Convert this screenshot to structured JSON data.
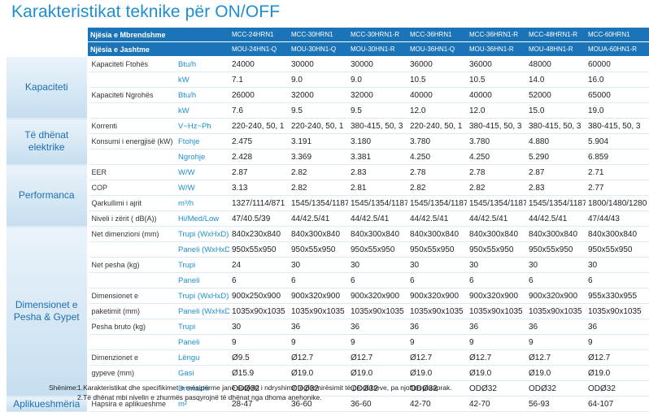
{
  "title": "Karakteristikat teknike për ON/OFF",
  "header": {
    "indoor_label": "Njësia e Mbrendshme",
    "outdoor_label": "Njësia e Jashtme",
    "indoor_models": [
      "MCC-24HRN1",
      "MCC-30HRN1",
      "MCC-30HRN1-R",
      "MCC-36HRN1",
      "MCC-36HRN1-R",
      "MCC-48HRN1-R",
      "MCC-60HRN1"
    ],
    "outdoor_models": [
      "MOU-24HN1-Q",
      "MOU-30HN1-Q",
      "MOU-30HN1-R",
      "MOU-36HN1-Q",
      "MOU-36HN1-R",
      "MOU-48HN1-R",
      "MOUA-60HN1-R"
    ]
  },
  "sections": {
    "kapaciteti": "Kapaciteti",
    "elektrike": "Të dhënat elektrike",
    "performanca": "Performanca",
    "dimensionet": "Dimensionet e Pesha & Gypet",
    "aplikueshmeria": "Aplikueshmëria"
  },
  "rows": [
    {
      "label": "Kapaciteti Ftohës",
      "unit": "Btu/h",
      "values": [
        "24000",
        "30000",
        "30000",
        "36000",
        "36000",
        "48000",
        "60000"
      ]
    },
    {
      "label": "",
      "unit": "kW",
      "values": [
        "7.1",
        "9.0",
        "9.0",
        "10.5",
        "10.5",
        "14.0",
        "16.0"
      ]
    },
    {
      "label": "Kapaciteti Ngrohës",
      "unit": "Btu/h",
      "values": [
        "26000",
        "32000",
        "32000",
        "40000",
        "40000",
        "52000",
        "65000"
      ]
    },
    {
      "label": "",
      "unit": "kW",
      "values": [
        "7.6",
        "9.5",
        "9.5",
        "12.0",
        "12.0",
        "15.0",
        "19.0"
      ]
    },
    {
      "label": "Korrenti",
      "unit": "V~Hz~Ph",
      "values": [
        "220-240, 50, 1",
        "220-240, 50, 1",
        "380-415, 50, 3",
        "220-240, 50, 1",
        "380-415, 50, 3",
        "380-415, 50, 3",
        "380-415, 50, 3"
      ]
    },
    {
      "label": "Konsumi i energjisë (kW)",
      "unit": "Ftohje",
      "values": [
        "2.475",
        "3.191",
        "3.180",
        "3.780",
        "3.780",
        "4.880",
        "5.904"
      ]
    },
    {
      "label": "",
      "unit": "Ngrohje",
      "values": [
        "2.428",
        "3.369",
        "3.381",
        "4.250",
        "4.250",
        "5.290",
        "6.859"
      ]
    },
    {
      "label": "EER",
      "unit": "W/W",
      "values": [
        "2.87",
        "2.82",
        "2.83",
        "2.78",
        "2.78",
        "2.87",
        "2.71"
      ]
    },
    {
      "label": "COP",
      "unit": "W/W",
      "values": [
        "3.13",
        "2.82",
        "2.81",
        "2.82",
        "2.82",
        "2.83",
        "2.77"
      ]
    },
    {
      "label": "Qarkullimi i ajrit",
      "unit": "m³/h",
      "values": [
        "1327/1114/871",
        "1545/1354/1187",
        "1545/1354/1187",
        "1545/1354/1187",
        "1545/1354/1187",
        "1545/1354/1187",
        "1800/1480/1280"
      ]
    },
    {
      "label": "Niveli i zërit ( dB(A))",
      "unit": "Hi/Med/Low",
      "values": [
        "47/40.5/39",
        "44/42.5/41",
        "44/42.5/41",
        "44/42.5/41",
        "44/42.5/41",
        "44/42.5/41",
        "47/44/43"
      ]
    },
    {
      "label": "Net dimenzioni (mm)",
      "unit": "Trupi  (WxHxD)",
      "values": [
        "840x230x840",
        "840x300x840",
        "840x300x840",
        "840x300x840",
        "840x300x840",
        "840x300x840",
        "840x300x840"
      ]
    },
    {
      "label": "",
      "unit": "Paneli (WxHxD)",
      "values": [
        "950x55x950",
        "950x55x950",
        "950x55x950",
        "950x55x950",
        "950x55x950",
        "950x55x950",
        "950x55x950"
      ]
    },
    {
      "label": "Net pesha (kg)",
      "unit": "Trupi",
      "values": [
        "24",
        "30",
        "30",
        "30",
        "30",
        "30",
        "30"
      ]
    },
    {
      "label": "",
      "unit": "Paneli",
      "values": [
        "6",
        "6",
        "6",
        "6",
        "6",
        "6",
        "6"
      ]
    },
    {
      "label": "Dimensionet e",
      "unit": "Trupi  (WxHxD)",
      "values": [
        "900x250x900",
        "900x320x900",
        "900x320x900",
        "900x320x900",
        "900x320x900",
        "900x320x900",
        "955x330x955"
      ]
    },
    {
      "label": "paketimit (mm)",
      "unit": "Paneli (WxHxD)",
      "values": [
        "1035x90x1035",
        "1035x90x1035",
        "1035x90x1035",
        "1035x90x1035",
        "1035x90x1035",
        "1035x90x1035",
        "1035x90x1035"
      ]
    },
    {
      "label": "Pesha bruto (kg)",
      "unit": "Trupi",
      "values": [
        "30",
        "36",
        "36",
        "36",
        "36",
        "36",
        "36"
      ]
    },
    {
      "label": "",
      "unit": "Paneli",
      "values": [
        "9",
        "9",
        "9",
        "9",
        "9",
        "9",
        "9"
      ]
    },
    {
      "label": "Dimenzionet e",
      "unit": "Lëngu",
      "values": [
        "Ø9.5",
        "Ø12.7",
        "Ø12.7",
        "Ø12.7",
        "Ø12.7",
        "Ø12.7",
        "Ø12.7"
      ]
    },
    {
      "label": "gypeve (mm)",
      "unit": "Gasi",
      "values": [
        "Ø15.9",
        "Ø19.0",
        "Ø19.0",
        "Ø19.0",
        "Ø19.0",
        "Ø19.0",
        "Ø19.0"
      ]
    },
    {
      "label": "",
      "unit": "Drenazhi",
      "values": [
        "ODØ32",
        "ODØ32",
        "ODØ32",
        "ODØ32",
        "ODØ32",
        "ODØ32",
        "ODØ32"
      ]
    },
    {
      "label": "Hapsira e aplikueshme",
      "unit": "m²",
      "values": [
        "28-47",
        "36-60",
        "36-60",
        "42-70",
        "42-70",
        "56-93",
        "64-107"
      ]
    }
  ],
  "notes": {
    "label": "Shënime:",
    "n1": "1.Karakteristikat dhe specifikimet e mësipërme  janë subjekt i ndryshimit të përmirësimit të produkteve, pa njoftim paraprak.",
    "n2": "2.Të dhënat mbi nivelin e zhurmës pasqyrojnë të dhënat nga dhoma anehonike."
  },
  "colors": {
    "accent": "#1d8fd0",
    "header_bg": "#1c74b8",
    "section_text": "#1c6fb3"
  }
}
